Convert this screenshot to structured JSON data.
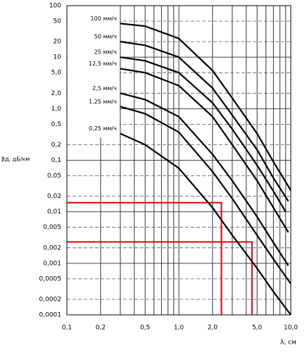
{
  "chart_data": {
    "type": "line",
    "xlabel": "λ, см",
    "ylabel": "βд, дБ/км",
    "xscale": "log",
    "yscale": "log",
    "xlim": [
      0.1,
      10
    ],
    "ylim": [
      0.0001,
      100
    ],
    "xticks": [
      {
        "value": 0.1,
        "label": "0,1"
      },
      {
        "value": 0.2,
        "label": "0,2"
      },
      {
        "value": 0.5,
        "label": "0,5"
      },
      {
        "value": 1,
        "label": "1,0"
      },
      {
        "value": 2,
        "label": "2,0"
      },
      {
        "value": 5,
        "label": "5,0"
      },
      {
        "value": 10,
        "label": "10,0"
      }
    ],
    "xminorticks": [
      0.3,
      0.4,
      0.6,
      0.7,
      0.8,
      0.9,
      3,
      4,
      6,
      7,
      8,
      9
    ],
    "yticks": [
      100,
      50,
      20,
      10,
      {
        "value": 5,
        "label": "5,0"
      },
      {
        "value": 2,
        "label": "2,0"
      },
      {
        "value": 1,
        "label": "1,0"
      },
      {
        "value": 0.5,
        "label": "0,5"
      },
      {
        "value": 0.2,
        "label": "0,2"
      },
      {
        "value": 0.1,
        "label": "0,1"
      },
      {
        "value": 0.05,
        "label": "0,05"
      },
      {
        "value": 0.02,
        "label": "0,02"
      },
      {
        "value": 0.01,
        "label": "0,01"
      },
      {
        "value": 0.005,
        "label": "0,005"
      },
      {
        "value": 0.002,
        "label": "0,002"
      },
      {
        "value": 0.001,
        "label": "0,001"
      },
      {
        "value": 0.0005,
        "label": "0,0005"
      },
      {
        "value": 0.0002,
        "label": "0,0002"
      },
      {
        "value": 0.0001,
        "label": "0,0001"
      }
    ],
    "grid": true,
    "series": [
      {
        "name": "100 мм/ч",
        "color": "#000000",
        "x": [
          0.3,
          0.5,
          1,
          2,
          3,
          5,
          7,
          10
        ],
        "values": [
          45,
          40,
          23,
          5.5,
          1.6,
          0.33,
          0.093,
          0.026
        ]
      },
      {
        "name": "50 мм/ч",
        "color": "#000000",
        "x": [
          0.3,
          0.5,
          1,
          2,
          3,
          5,
          7,
          9.5
        ],
        "values": [
          20,
          17,
          10,
          2.5,
          0.75,
          0.16,
          0.045,
          0.016
        ]
      },
      {
        "name": "25 мм/ч",
        "color": "#000000",
        "x": [
          0.3,
          0.5,
          1,
          2,
          3,
          5,
          7,
          9
        ],
        "values": [
          10,
          8.5,
          5,
          1.3,
          0.4,
          0.08,
          0.025,
          0.01
        ]
      },
      {
        "name": "12,5 мм/ч",
        "color": "#000000",
        "x": [
          0.3,
          0.5,
          1,
          2,
          3,
          5,
          7,
          9.5
        ],
        "values": [
          6,
          5,
          2.8,
          0.7,
          0.2,
          0.04,
          0.012,
          0.004
        ]
      },
      {
        "name": "2,5 мм/ч",
        "color": "#000000",
        "x": [
          0.3,
          0.5,
          1,
          2,
          3,
          5,
          7,
          9.5
        ],
        "values": [
          2,
          1.5,
          0.7,
          0.13,
          0.04,
          0.008,
          0.0025,
          0.0009
        ]
      },
      {
        "name": "1.25 мм/ч",
        "color": "#000000",
        "x": [
          0.3,
          0.5,
          1,
          2,
          3,
          5,
          7,
          10
        ],
        "values": [
          1.1,
          0.8,
          0.35,
          0.06,
          0.018,
          0.0035,
          0.0012,
          0.0004
        ]
      },
      {
        "name": "0,25 мм/ч",
        "color": "#000000",
        "x": [
          0.3,
          0.5,
          1,
          2,
          3,
          5,
          7,
          10
        ],
        "values": [
          0.33,
          0.2,
          0.07,
          0.012,
          0.0035,
          0.0008,
          0.00028,
          0.0001
        ]
      }
    ],
    "reference_lines": [
      {
        "x": 2.4,
        "y": 0.015
      },
      {
        "x": 4.5,
        "y": 0.0026
      }
    ],
    "reference_color": "#e00000"
  }
}
